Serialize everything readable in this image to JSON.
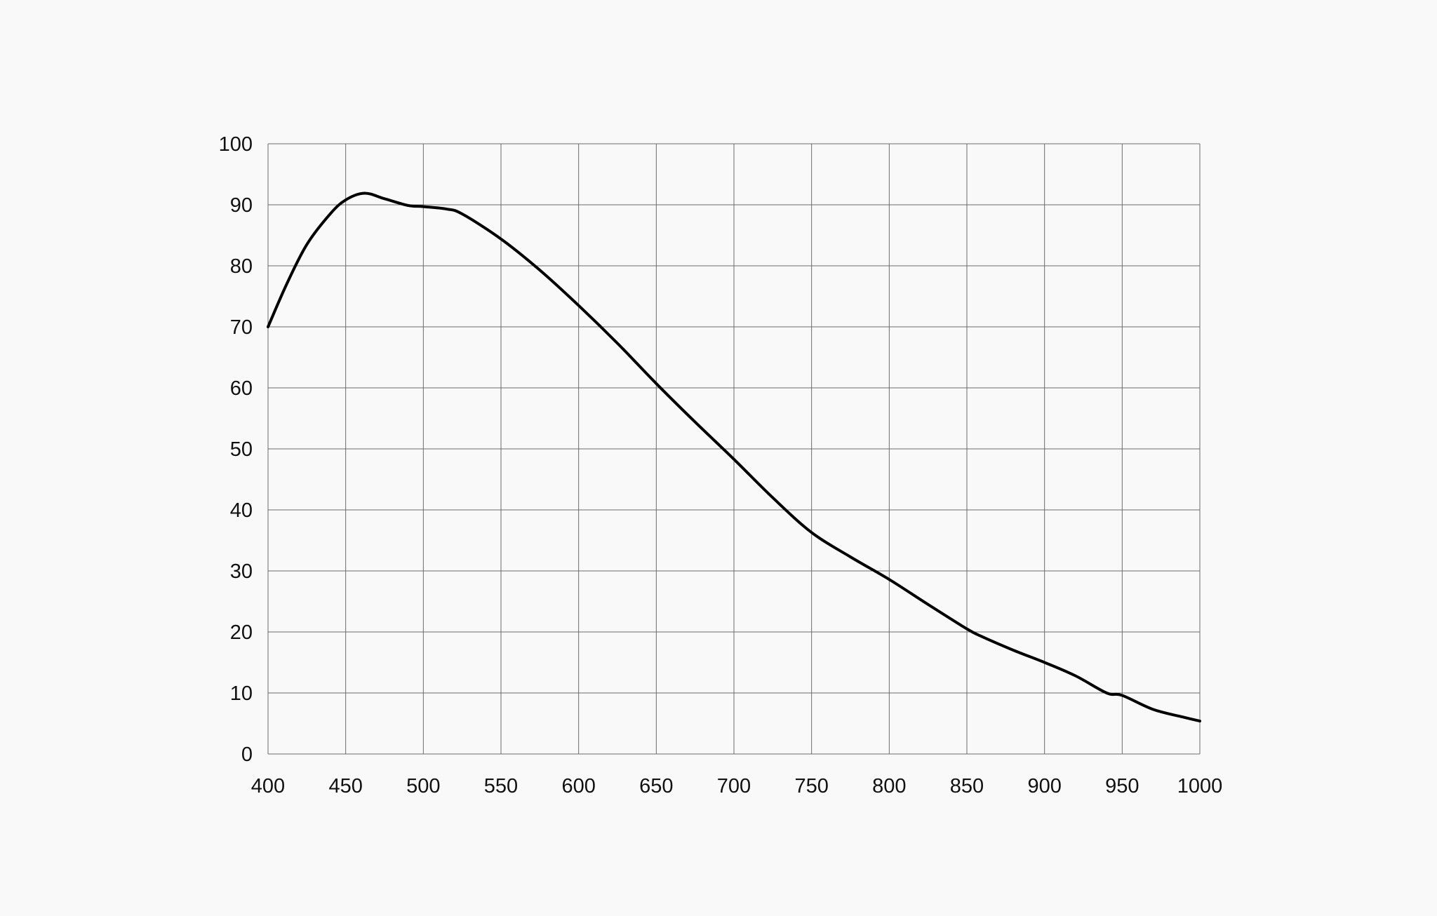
{
  "chart_data": {
    "type": "line",
    "title": "",
    "xlabel": "",
    "ylabel": "",
    "xlim": [
      400,
      1000
    ],
    "ylim": [
      0,
      100
    ],
    "grid": true,
    "x_ticks": [
      "400",
      "450",
      "500",
      "550",
      "600",
      "650",
      "700",
      "750",
      "800",
      "850",
      "900",
      "950",
      "1000"
    ],
    "y_ticks": [
      "0",
      "10",
      "20",
      "30",
      "40",
      "50",
      "60",
      "70",
      "80",
      "90",
      "100"
    ],
    "line_color": "#000000",
    "series": [
      {
        "x": [
          400,
          412,
          425,
          440,
          450,
          462,
          475,
          490,
          500,
          515,
          525,
          550,
          575,
          600,
          625,
          650,
          675,
          700,
          725,
          750,
          775,
          800,
          825,
          850,
          860,
          880,
          900,
          920,
          940,
          950,
          970,
          990,
          1000
        ],
        "y": [
          70,
          77,
          83.5,
          88.5,
          90.8,
          91.9,
          91,
          89.9,
          89.7,
          89.3,
          88.5,
          84.4,
          79.3,
          73.5,
          67.3,
          60.7,
          54.4,
          48.3,
          42,
          36.3,
          32.3,
          28.6,
          24.5,
          20.5,
          19.2,
          17,
          15,
          12.8,
          10,
          9.6,
          7.3,
          6,
          5.4
        ]
      }
    ]
  }
}
